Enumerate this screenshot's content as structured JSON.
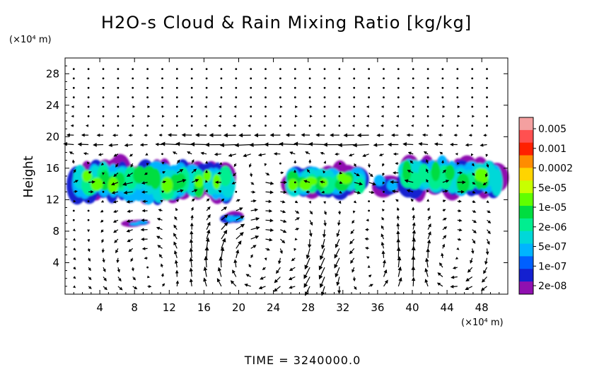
{
  "chart_data": {
    "type": "heatmap",
    "title": "H2O-s Cloud & Rain Mixing Ratio [kg/kg]",
    "ylabel": "Height",
    "y_unit": "(×10⁴ m)",
    "x_unit": "(×10⁴ m)",
    "time_label": "TIME = 3240000.0",
    "xlim": [
      0,
      51
    ],
    "ylim": [
      0,
      30
    ],
    "x_ticks": [
      4,
      8,
      12,
      16,
      20,
      24,
      28,
      32,
      36,
      40,
      44,
      48
    ],
    "y_ticks": [
      4,
      8,
      12,
      16,
      20,
      24,
      28
    ],
    "colorbar": {
      "labels": [
        "0.005",
        "0.001",
        "0.0002",
        "5e-05",
        "1e-05",
        "2e-06",
        "5e-07",
        "1e-07",
        "2e-08"
      ],
      "colors": [
        "#f4a0a0",
        "#ff5050",
        "#ff2000",
        "#ff8c00",
        "#ffd400",
        "#c8ff00",
        "#60ff00",
        "#00dd40",
        "#00ee90",
        "#00d8d8",
        "#00b4ff",
        "#0060ff",
        "#1420d0",
        "#9010b0"
      ]
    },
    "cloud_regions": [
      {
        "x": [
          0,
          20.5
        ],
        "y": [
          11.8,
          16.8
        ],
        "level": "5e-05",
        "note_free": true
      },
      {
        "x": [
          18.5,
          20.5
        ],
        "y": [
          9.0,
          10.4
        ],
        "level": "5e-07"
      },
      {
        "x": [
          7.5,
          9.5
        ],
        "y": [
          8.6,
          9.4
        ],
        "level": "5e-07"
      },
      {
        "x": [
          25.5,
          35.0
        ],
        "y": [
          12.5,
          16.2
        ],
        "level": "1e-05"
      },
      {
        "x": [
          36.0,
          38.5
        ],
        "y": [
          12.7,
          15.3
        ],
        "level": "5e-07"
      },
      {
        "x": [
          38.5,
          51.0
        ],
        "y": [
          12.5,
          17.3
        ],
        "level": "1e-05"
      }
    ],
    "wind_vectors": "grid of arrows over the full domain; strong leftward flow near y=19, circulating eddies below y=8 around x=22, x=34, x=44"
  }
}
